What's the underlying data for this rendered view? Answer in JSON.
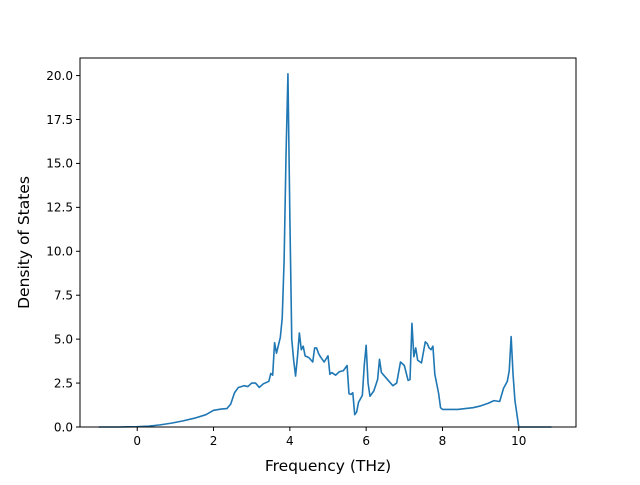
{
  "chart_data": {
    "type": "line",
    "title": "",
    "xlabel": "Frequency (THz)",
    "ylabel": "Density of States",
    "xlim": [
      -1.5,
      11.5
    ],
    "ylim": [
      0.0,
      21.0
    ],
    "xticks": [
      0,
      2,
      4,
      6,
      8,
      10
    ],
    "yticks": [
      0.0,
      2.5,
      5.0,
      7.5,
      10.0,
      12.5,
      15.0,
      17.5,
      20.0
    ],
    "xtick_labels": [
      "0",
      "2",
      "4",
      "6",
      "8",
      "10"
    ],
    "ytick_labels": [
      "0.0",
      "2.5",
      "5.0",
      "7.5",
      "10.0",
      "12.5",
      "15.0",
      "17.5",
      "20.0"
    ],
    "grid": false,
    "legend": "none",
    "series": [
      {
        "color": "#1f77b4",
        "x": [
          -1.0,
          -0.5,
          0.0,
          0.3,
          0.6,
          0.9,
          1.2,
          1.5,
          1.8,
          2.0,
          2.2,
          2.35,
          2.45,
          2.55,
          2.65,
          2.8,
          2.9,
          3.0,
          3.1,
          3.2,
          3.3,
          3.45,
          3.5,
          3.55,
          3.6,
          3.65,
          3.75,
          3.8,
          3.85,
          3.9,
          3.95,
          4.0,
          4.05,
          4.1,
          4.15,
          4.2,
          4.25,
          4.3,
          4.35,
          4.4,
          4.5,
          4.6,
          4.65,
          4.7,
          4.75,
          4.8,
          4.9,
          5.0,
          5.05,
          5.1,
          5.2,
          5.3,
          5.4,
          5.5,
          5.55,
          5.6,
          5.65,
          5.7,
          5.75,
          5.8,
          5.9,
          5.95,
          6.0,
          6.05,
          6.1,
          6.2,
          6.3,
          6.35,
          6.4,
          6.5,
          6.6,
          6.7,
          6.8,
          6.9,
          7.0,
          7.1,
          7.15,
          7.2,
          7.25,
          7.3,
          7.35,
          7.45,
          7.55,
          7.6,
          7.65,
          7.7,
          7.75,
          7.8,
          7.9,
          7.95,
          8.0,
          8.2,
          8.4,
          8.6,
          8.8,
          9.0,
          9.2,
          9.35,
          9.5,
          9.6,
          9.7,
          9.75,
          9.8,
          9.85,
          9.9,
          10.0,
          10.2,
          10.5,
          10.85
        ],
        "y": [
          0.0,
          0.0,
          0.02,
          0.05,
          0.12,
          0.22,
          0.35,
          0.5,
          0.7,
          0.95,
          1.02,
          1.05,
          1.3,
          1.95,
          2.25,
          2.35,
          2.3,
          2.5,
          2.5,
          2.25,
          2.45,
          2.6,
          3.05,
          2.95,
          4.8,
          4.2,
          5.1,
          6.2,
          9.5,
          15.5,
          20.1,
          12.0,
          5.0,
          3.8,
          2.9,
          4.0,
          5.35,
          4.4,
          4.6,
          4.05,
          3.95,
          3.7,
          4.5,
          4.5,
          4.2,
          4.0,
          3.7,
          4.05,
          3.0,
          3.1,
          2.95,
          3.15,
          3.2,
          3.5,
          1.9,
          1.85,
          1.95,
          0.7,
          0.85,
          1.4,
          1.8,
          3.5,
          4.65,
          2.5,
          1.75,
          2.05,
          2.7,
          3.85,
          3.1,
          2.85,
          2.6,
          2.35,
          2.5,
          3.7,
          3.5,
          2.65,
          2.7,
          5.9,
          4.0,
          4.5,
          3.8,
          3.65,
          4.85,
          4.75,
          4.5,
          4.4,
          4.6,
          3.0,
          1.9,
          1.1,
          1.0,
          1.0,
          1.0,
          1.05,
          1.1,
          1.2,
          1.35,
          1.5,
          1.45,
          2.2,
          2.6,
          3.2,
          5.15,
          3.0,
          1.5,
          0.0,
          0.0,
          0.0,
          0.0
        ]
      }
    ]
  }
}
